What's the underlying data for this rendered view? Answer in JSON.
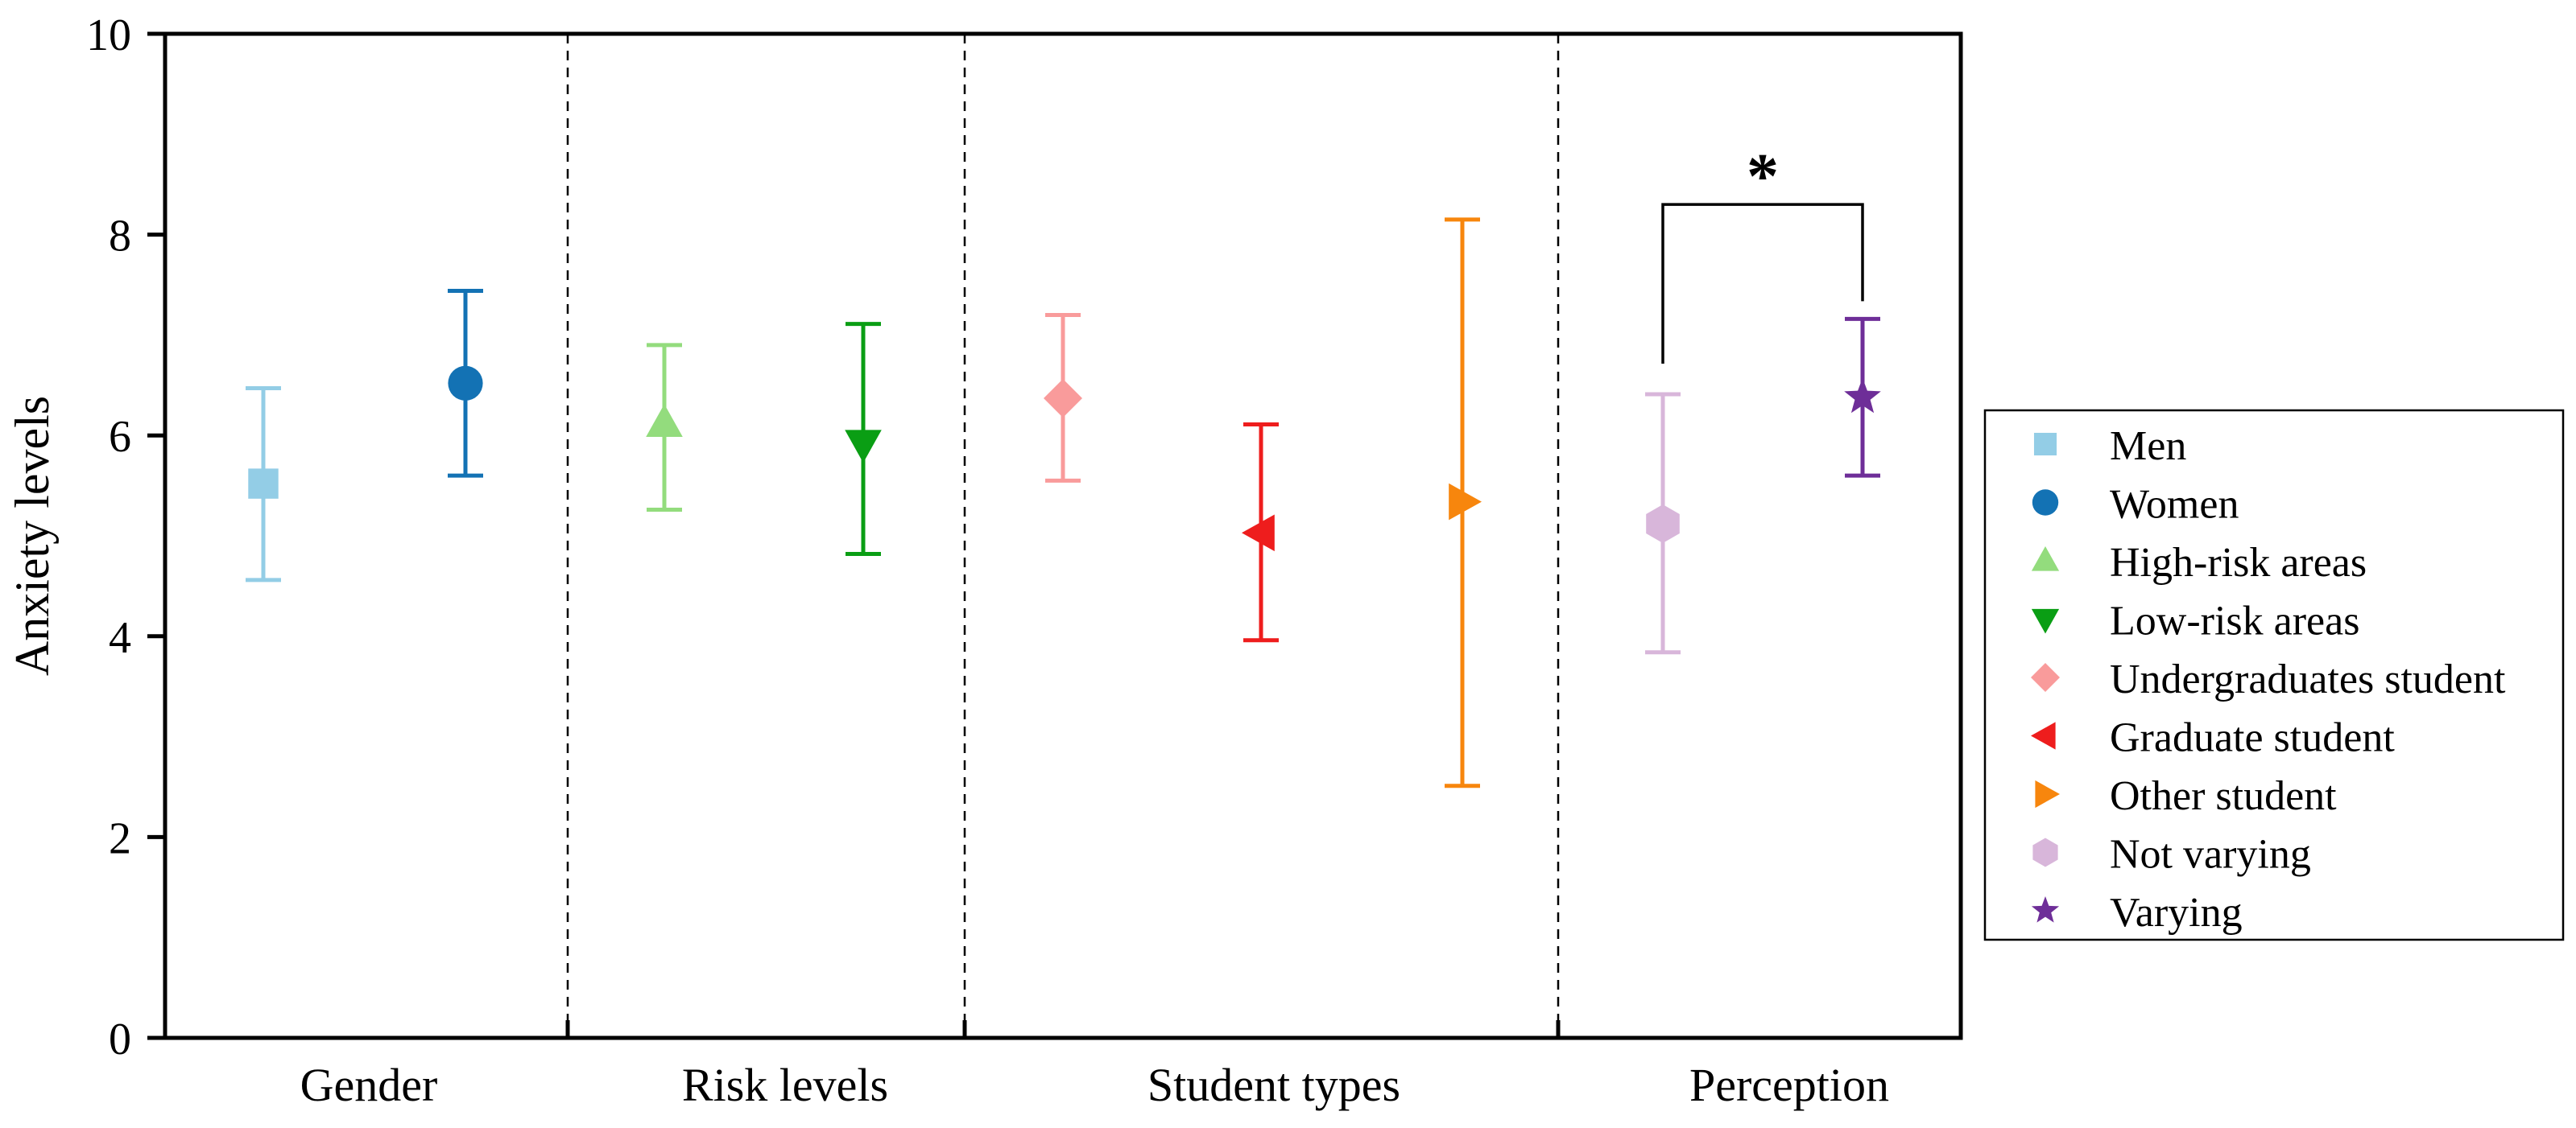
{
  "chart_data": {
    "type": "errorbar",
    "title": "",
    "xlabel": "",
    "ylabel": "Anxiety levels",
    "ylim": [
      0,
      10
    ],
    "yticks": [
      "0",
      "2",
      "4",
      "6",
      "8",
      "10"
    ],
    "groups": [
      "Gender",
      "Risk levels",
      "Student types",
      "Perception"
    ],
    "series": [
      {
        "name": "Men",
        "group": "Gender",
        "mean": 5.52,
        "lower": 4.56,
        "upper": 6.47,
        "color": "#93CDE6",
        "marker": "square"
      },
      {
        "name": "Women",
        "group": "Gender",
        "mean": 6.52,
        "lower": 5.6,
        "upper": 7.44,
        "color": "#1372B4",
        "marker": "circle"
      },
      {
        "name": "High-risk areas",
        "group": "Risk levels",
        "mean": 6.12,
        "lower": 5.26,
        "upper": 6.9,
        "color": "#93DC7D",
        "marker": "triangle-up"
      },
      {
        "name": "Low-risk areas",
        "group": "Risk levels",
        "mean": 5.92,
        "lower": 4.82,
        "upper": 7.11,
        "color": "#0A9E14",
        "marker": "triangle-down"
      },
      {
        "name": "Undergraduates student",
        "group": "Student types",
        "mean": 6.37,
        "lower": 5.55,
        "upper": 7.2,
        "color": "#F99B9B",
        "marker": "diamond"
      },
      {
        "name": "Graduate student",
        "group": "Student types",
        "mean": 5.03,
        "lower": 3.96,
        "upper": 6.11,
        "color": "#EE1D1D",
        "marker": "triangle-left"
      },
      {
        "name": "Other student",
        "group": "Student types",
        "mean": 5.34,
        "lower": 2.51,
        "upper": 8.15,
        "color": "#F7860D",
        "marker": "triangle-right"
      },
      {
        "name": "Not varying",
        "group": "Perception",
        "mean": 5.12,
        "lower": 3.84,
        "upper": 6.41,
        "color": "#D8B6DA",
        "marker": "hexagon"
      },
      {
        "name": "Varying",
        "group": "Perception",
        "mean": 6.38,
        "lower": 5.6,
        "upper": 7.16,
        "color": "#6E2E98",
        "marker": "star"
      }
    ],
    "annotations": [
      {
        "text": "*",
        "between": [
          "Not varying",
          "Varying"
        ],
        "bracket_level": 8.3
      }
    ],
    "legend": {
      "position": "right",
      "entries": [
        "Men",
        "Women",
        "High-risk areas",
        "Low-risk areas",
        "Undergraduates student",
        "Graduate student",
        "Other student",
        "Not varying",
        "Varying"
      ]
    }
  }
}
